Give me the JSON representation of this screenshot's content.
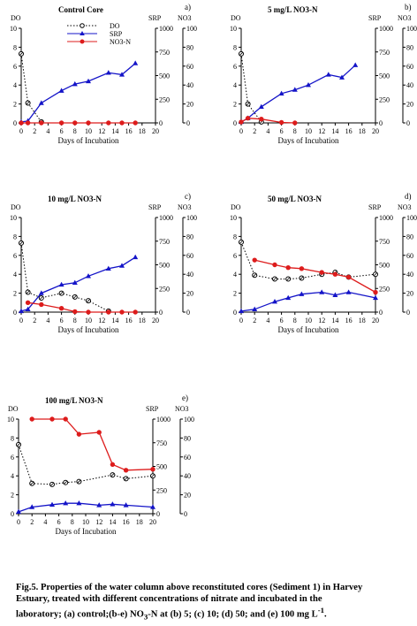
{
  "chart_data": [
    {
      "type": "line",
      "panel_letter": "a)",
      "title": "Control Core",
      "xlabel": "Days of Incubation",
      "left_axis_label": "DO",
      "right_axis_labels": [
        "SRP",
        "NO3"
      ],
      "xlim": [
        0,
        20
      ],
      "x_ticks": [
        "0",
        "2",
        "4",
        "6",
        "8",
        "10",
        "12",
        "14",
        "16",
        "18",
        "20"
      ],
      "ylim_do": [
        0,
        10
      ],
      "do_ticks": [
        "0",
        "2",
        "4",
        "6",
        "8",
        "10"
      ],
      "ylim_srp": [
        0,
        1000
      ],
      "srp_ticks": [
        "0",
        "250",
        "500",
        "750",
        "1000"
      ],
      "ylim_no3": [
        0,
        100
      ],
      "no3_ticks": [
        "0",
        "20",
        "40",
        "60",
        "80",
        "100"
      ],
      "legend": {
        "position": "top-center",
        "entries": [
          "DO",
          "SRP",
          "NO3-N"
        ]
      },
      "series": [
        {
          "name": "DO",
          "axis": "do",
          "color": "#000000",
          "x": [
            0,
            1,
            3
          ],
          "y": [
            7.3,
            2.1,
            0.1
          ]
        },
        {
          "name": "SRP",
          "axis": "srp",
          "color": "#1414c8",
          "x": [
            0,
            1,
            3,
            6,
            8,
            10,
            13,
            15,
            17
          ],
          "y": [
            10,
            20,
            210,
            340,
            410,
            440,
            530,
            510,
            630
          ]
        },
        {
          "name": "NO3-N",
          "axis": "no3",
          "color": "#dd1c1c",
          "x": [
            0,
            1,
            3,
            6,
            8,
            10,
            13,
            15,
            17
          ],
          "y": [
            0,
            0,
            0,
            0,
            0,
            0,
            0,
            0,
            0
          ]
        }
      ]
    },
    {
      "type": "line",
      "panel_letter": "b)",
      "title": "5  mg/L NO3-N",
      "xlabel": "Days of Incubation",
      "left_axis_label": "DO",
      "right_axis_labels": [
        "SRP",
        "NO3"
      ],
      "xlim": [
        0,
        20
      ],
      "x_ticks": [
        "0",
        "2",
        "4",
        "6",
        "8",
        "10",
        "12",
        "14",
        "16",
        "18",
        "20"
      ],
      "ylim_do": [
        0,
        10
      ],
      "do_ticks": [
        "0",
        "2",
        "4",
        "6",
        "8",
        "10"
      ],
      "ylim_srp": [
        0,
        1000
      ],
      "srp_ticks": [
        "0",
        "250",
        "500",
        "750",
        "1000"
      ],
      "ylim_no3": [
        0,
        100
      ],
      "no3_ticks": [
        "0",
        "20",
        "40",
        "60",
        "80",
        "100"
      ],
      "series": [
        {
          "name": "DO",
          "axis": "do",
          "color": "#000000",
          "x": [
            0,
            1,
            3
          ],
          "y": [
            7.3,
            2.0,
            0.1
          ]
        },
        {
          "name": "SRP",
          "axis": "srp",
          "color": "#1414c8",
          "x": [
            0,
            1,
            3,
            6,
            8,
            10,
            13,
            15,
            17
          ],
          "y": [
            10,
            50,
            170,
            310,
            350,
            400,
            510,
            480,
            610
          ]
        },
        {
          "name": "NO3-N",
          "axis": "no3",
          "color": "#dd1c1c",
          "x": [
            0,
            1,
            3,
            6,
            8
          ],
          "y": [
            1,
            5,
            4,
            0.5,
            0
          ]
        }
      ]
    },
    {
      "type": "line",
      "panel_letter": "c)",
      "title": "10 mg/L NO3-N",
      "xlabel": "Days of Incubation",
      "left_axis_label": "DO",
      "right_axis_labels": [
        "SRP",
        "NO3"
      ],
      "xlim": [
        0,
        20
      ],
      "x_ticks": [
        "0",
        "2",
        "4",
        "6",
        "8",
        "10",
        "12",
        "14",
        "16",
        "18",
        "20"
      ],
      "ylim_do": [
        0,
        10
      ],
      "do_ticks": [
        "0",
        "2",
        "4",
        "6",
        "8",
        "10"
      ],
      "ylim_srp": [
        0,
        1000
      ],
      "srp_ticks": [
        "0",
        "250",
        "500",
        "750",
        "1000"
      ],
      "ylim_no3": [
        0,
        100
      ],
      "no3_ticks": [
        "0",
        "20",
        "40",
        "60",
        "80",
        "100"
      ],
      "series": [
        {
          "name": "DO",
          "axis": "do",
          "color": "#000000",
          "x": [
            0,
            1,
            3,
            6,
            8,
            10,
            13
          ],
          "y": [
            7.3,
            2.1,
            1.5,
            2.0,
            1.6,
            1.2,
            0.1
          ]
        },
        {
          "name": "SRP",
          "axis": "srp",
          "color": "#1414c8",
          "x": [
            0,
            1,
            3,
            6,
            8,
            10,
            13,
            15,
            17
          ],
          "y": [
            10,
            30,
            200,
            290,
            310,
            380,
            460,
            490,
            580
          ]
        },
        {
          "name": "NO3-N",
          "axis": "no3",
          "color": "#dd1c1c",
          "x": [
            1,
            3,
            6,
            8,
            10,
            13,
            15,
            17
          ],
          "y": [
            10,
            8,
            4,
            0.5,
            0,
            0,
            0,
            0
          ]
        }
      ]
    },
    {
      "type": "line",
      "panel_letter": "d)",
      "title": "50  mg/L NO3-N",
      "xlabel": "Days of Incubation",
      "left_axis_label": "DO",
      "right_axis_labels": [
        "SRP",
        "NO3"
      ],
      "xlim": [
        0,
        20
      ],
      "x_ticks": [
        "0",
        "2",
        "4",
        "6",
        "8",
        "10",
        "12",
        "14",
        "16",
        "18",
        "20"
      ],
      "ylim_do": [
        0,
        10
      ],
      "do_ticks": [
        "0",
        "2",
        "4",
        "6",
        "8",
        "10"
      ],
      "ylim_srp": [
        0,
        1000
      ],
      "srp_ticks": [
        "0",
        "250",
        "500",
        "750",
        "1000"
      ],
      "ylim_no3": [
        0,
        100
      ],
      "no3_ticks": [
        "0",
        "20",
        "40",
        "60",
        "80",
        "100"
      ],
      "series": [
        {
          "name": "DO",
          "axis": "do",
          "color": "#000000",
          "x": [
            0,
            2,
            5,
            7,
            9,
            12,
            14,
            16,
            20
          ],
          "y": [
            7.4,
            3.9,
            3.5,
            3.5,
            3.6,
            4.0,
            4.2,
            3.7,
            4.0
          ]
        },
        {
          "name": "SRP",
          "axis": "srp",
          "color": "#1414c8",
          "x": [
            0,
            2,
            5,
            7,
            9,
            12,
            14,
            16,
            20
          ],
          "y": [
            10,
            30,
            110,
            150,
            190,
            210,
            180,
            210,
            150
          ]
        },
        {
          "name": "NO3-N",
          "axis": "no3",
          "color": "#dd1c1c",
          "x": [
            2,
            5,
            7,
            9,
            12,
            14,
            16,
            20
          ],
          "y": [
            55,
            50,
            47,
            46,
            42,
            40,
            37,
            21
          ]
        }
      ]
    },
    {
      "type": "line",
      "panel_letter": "e)",
      "title": "100  mg/L NO3-N",
      "xlabel": "Days of Incubation",
      "left_axis_label": "DO",
      "right_axis_labels": [
        "SRP",
        "NO3"
      ],
      "xlim": [
        0,
        20
      ],
      "x_ticks": [
        "0",
        "2",
        "4",
        "6",
        "8",
        "10",
        "12",
        "14",
        "16",
        "18",
        "20"
      ],
      "ylim_do": [
        0,
        10
      ],
      "do_ticks": [
        "0",
        "2",
        "4",
        "6",
        "8",
        "10"
      ],
      "ylim_srp": [
        0,
        1000
      ],
      "srp_ticks": [
        "0",
        "250",
        "500",
        "750",
        "1000"
      ],
      "ylim_no3": [
        0,
        100
      ],
      "no3_ticks": [
        "0",
        "20",
        "40",
        "60",
        "80",
        "100"
      ],
      "series": [
        {
          "name": "DO",
          "axis": "do",
          "color": "#000000",
          "x": [
            0,
            2,
            5,
            7,
            9,
            14,
            16,
            20
          ],
          "y": [
            7.3,
            3.2,
            3.1,
            3.3,
            3.4,
            4.1,
            3.7,
            4.0
          ]
        },
        {
          "name": "SRP",
          "axis": "srp",
          "color": "#1414c8",
          "x": [
            0,
            2,
            5,
            7,
            9,
            12,
            14,
            16,
            20
          ],
          "y": [
            20,
            70,
            95,
            110,
            110,
            90,
            100,
            90,
            70
          ]
        },
        {
          "name": "NO3-N",
          "axis": "no3",
          "color": "#dd1c1c",
          "x": [
            2,
            5,
            7,
            9,
            12,
            14,
            16,
            20
          ],
          "y": [
            100,
            100,
            100,
            84,
            86,
            52,
            46,
            47
          ]
        }
      ]
    }
  ],
  "caption": {
    "line1": "Fig.5. Properties of the water column above reconstituted cores (Sediment 1) in Harvey",
    "line2": "Estuary, treated with different concentrations of nitrate and incubated in the",
    "line3_pre": "laboratory; (a) control;(b-e) NO",
    "line3_sub": "3",
    "line3_mid": "-N at (b) 5; (c) 10; (d) 50; and (e) 100 mg L",
    "line3_sup": "-1",
    "line3_end": "."
  }
}
